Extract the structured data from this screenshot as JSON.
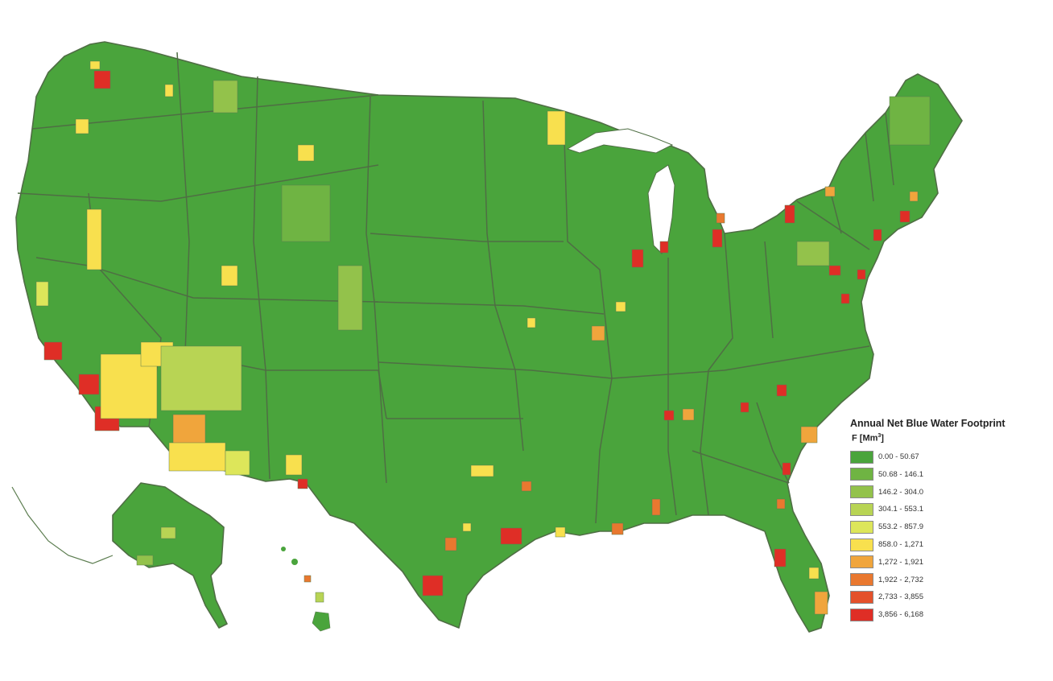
{
  "legend": {
    "title": "Annual Net Blue Water Footprint",
    "unit_prefix": "F [Mm",
    "unit_sup": "3",
    "unit_suffix": "]",
    "classes": [
      {
        "label": "0.00 - 50.67",
        "color": "#4aa43c"
      },
      {
        "label": "50.68 - 146.1",
        "color": "#6fb443"
      },
      {
        "label": "146.2 - 304.0",
        "color": "#93c24b"
      },
      {
        "label": "304.1 - 553.1",
        "color": "#b8d454"
      },
      {
        "label": "553.2 - 857.9",
        "color": "#dde65a"
      },
      {
        "label": "858.0 - 1,271",
        "color": "#f8e04e"
      },
      {
        "label": "1,272 - 1,921",
        "color": "#f0a53c"
      },
      {
        "label": "1,922 - 2,732",
        "color": "#e9782f"
      },
      {
        "label": "2,733 - 3,855",
        "color": "#e4512b"
      },
      {
        "label": "3,856 - 6,168",
        "color": "#df2e26"
      }
    ]
  },
  "colors": {
    "base": "#4aa43c",
    "state_border": "#4f6e44",
    "county_border": "#5c7d50"
  }
}
